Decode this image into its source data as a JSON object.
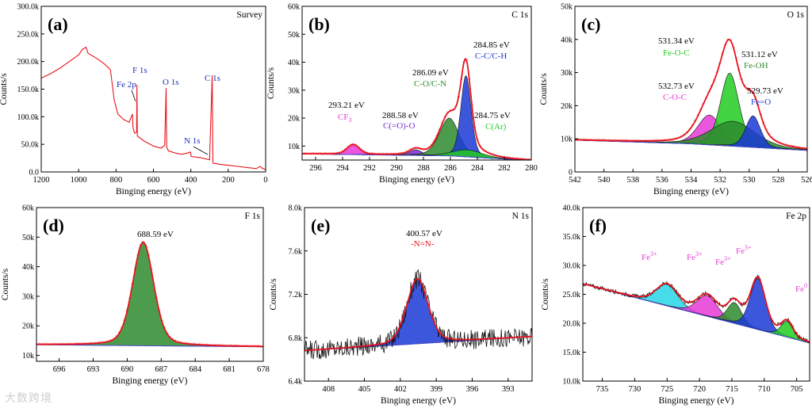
{
  "watermark": "大数跨境",
  "chart_data": [
    {
      "id": "a",
      "type": "line",
      "panel_label": "(a)",
      "title": "Survey",
      "xlabel": "Binging energy (eV)",
      "ylabel": "Counts/s",
      "xlim": [
        1200,
        0
      ],
      "ylim": [
        0,
        300000
      ],
      "xticks": [
        1200,
        1000,
        800,
        600,
        400,
        200,
        0
      ],
      "xtick_labels": [
        "1200",
        "1000",
        "800",
        "600",
        "400",
        "200",
        "0"
      ],
      "yticks": [
        0,
        50000,
        100000,
        150000,
        200000,
        250000,
        300000
      ],
      "ytick_labels": [
        "0.0",
        "50.0k",
        "100.0k",
        "150.0k",
        "200.0k",
        "250.0k",
        "300.0k"
      ],
      "colors": {
        "spectrum": "#e8141e",
        "labels": "#1a2fb8",
        "annotation": "#000000"
      },
      "series": [
        {
          "values": [
            [
              1200,
              170000
            ],
            [
              1150,
              178000
            ],
            [
              1100,
              188000
            ],
            [
              1050,
              200000
            ],
            [
              1000,
              212000
            ],
            [
              980,
              222000
            ],
            [
              960,
              226000
            ],
            [
              950,
              215000
            ],
            [
              900,
              205000
            ],
            [
              860,
              195000
            ],
            [
              830,
              185000
            ],
            [
              810,
              130000
            ],
            [
              790,
              105000
            ],
            [
              760,
              95000
            ],
            [
              730,
              90000
            ],
            [
              712,
              105000
            ],
            [
              710,
              82000
            ],
            [
              705,
              75000
            ],
            [
              700,
              70000
            ],
            [
              690,
              72000
            ],
            [
              688,
              158000
            ],
            [
              686,
              65000
            ],
            [
              650,
              56000
            ],
            [
              600,
              47000
            ],
            [
              560,
              43000
            ],
            [
              540,
              48000
            ],
            [
              532,
              152000
            ],
            [
              529,
              45000
            ],
            [
              520,
              38000
            ],
            [
              480,
              34000
            ],
            [
              450,
              32000
            ],
            [
              420,
              34000
            ],
            [
              402,
              36000
            ],
            [
              398,
              28000
            ],
            [
              350,
              26000
            ],
            [
              300,
              22000
            ],
            [
              286,
              175000
            ],
            [
              282,
              16000
            ],
            [
              250,
              14000
            ],
            [
              200,
              12000
            ],
            [
              150,
              10000
            ],
            [
              100,
              8000
            ],
            [
              50,
              6000
            ],
            [
              30,
              10000
            ],
            [
              20,
              7000
            ],
            [
              0,
              4000
            ]
          ]
        }
      ],
      "annotations": [
        {
          "text": "F 1s",
          "x": 688,
          "y": 175000
        },
        {
          "text": "Fe 2p",
          "x": 725,
          "y": 150000
        },
        {
          "text": "O 1s",
          "x": 532,
          "y": 155000
        },
        {
          "text": "C 1s",
          "x": 286,
          "y": 160000
        },
        {
          "text": "N 1s",
          "x": 398,
          "y": 48000
        }
      ]
    },
    {
      "id": "b",
      "type": "line",
      "panel_label": "(b)",
      "title": "C 1s",
      "xlabel": "Binging energy (eV)",
      "ylabel": "Counts/s",
      "xlim": [
        297,
        280
      ],
      "ylim": [
        5000,
        60000
      ],
      "xticks": [
        296,
        294,
        292,
        290,
        288,
        286,
        284,
        282,
        280
      ],
      "xtick_labels": [
        "296",
        "294",
        "292",
        "290",
        "288",
        "286",
        "284",
        "282",
        "280"
      ],
      "yticks": [
        10000,
        20000,
        30000,
        40000,
        50000,
        60000
      ],
      "ytick_labels": [
        "10k",
        "20k",
        "30k",
        "40k",
        "50k",
        "60k"
      ],
      "background": [
        [
          297,
          7200
        ],
        [
          286,
          6500
        ],
        [
          280,
          4800
        ]
      ],
      "peaks": [
        {
          "center": 293.21,
          "height": 3500,
          "fwhm": 1.1,
          "color": "#e83ad6"
        },
        {
          "center": 288.58,
          "height": 2000,
          "fwhm": 1.1,
          "color": "#7a2ad6"
        },
        {
          "center": 286.09,
          "height": 13500,
          "fwhm": 1.7,
          "color": "#2e8b2e"
        },
        {
          "center": 284.85,
          "height": 29000,
          "fwhm": 0.9,
          "color": "#1a3ad6"
        },
        {
          "center": 284.75,
          "height": 2500,
          "fwhm": 2.6,
          "color": "#22cc22"
        }
      ],
      "envelope_color": "#e8141e",
      "annotations": [
        {
          "text": "284.85 eV",
          "color": "#000000"
        },
        {
          "text": "C-C/C-H",
          "color": "#1a3ad6"
        },
        {
          "text": "286.09 eV",
          "color": "#000000"
        },
        {
          "text": "C-O/C-N",
          "color": "#2e8b2e"
        },
        {
          "text": "284.75 eV",
          "color": "#000000"
        },
        {
          "text": "C(Ar)",
          "color": "#22cc22"
        },
        {
          "text": "293.21 eV",
          "color": "#000000"
        },
        {
          "text": "CF",
          "sub": "3",
          "color": "#e83ad6"
        },
        {
          "text": "288.58 eV",
          "color": "#000000"
        },
        {
          "text": "C(=O)-O",
          "color": "#7a2ad6"
        }
      ]
    },
    {
      "id": "c",
      "type": "line",
      "panel_label": "(c)",
      "title": "O 1s",
      "xlabel": "Binging energy (eV)",
      "ylabel": "Counts/s",
      "xlim": [
        542,
        526
      ],
      "ylim": [
        0,
        50000
      ],
      "xticks": [
        542,
        540,
        538,
        536,
        534,
        532,
        530,
        528,
        526
      ],
      "xtick_labels": [
        "542",
        "540",
        "538",
        "536",
        "534",
        "532",
        "530",
        "528",
        "526"
      ],
      "yticks": [
        0,
        10000,
        20000,
        30000,
        40000,
        50000
      ],
      "ytick_labels": [
        "0",
        "10k",
        "20k",
        "30k",
        "40k",
        "50k"
      ],
      "background": [
        [
          542,
          9600
        ],
        [
          534,
          8500
        ],
        [
          526,
          6500
        ]
      ],
      "peaks": [
        {
          "center": 532.73,
          "height": 9000,
          "fwhm": 1.9,
          "color": "#e83ad6"
        },
        {
          "center": 531.34,
          "height": 22000,
          "fwhm": 1.5,
          "color": "#22cc22"
        },
        {
          "center": 531.12,
          "height": 7500,
          "fwhm": 3.6,
          "color": "#2e8b2e"
        },
        {
          "center": 529.73,
          "height": 9500,
          "fwhm": 1.2,
          "color": "#1a3ad6"
        }
      ],
      "envelope_color": "#e8141e",
      "annotations": [
        {
          "text": "531.34 eV",
          "color": "#000000"
        },
        {
          "text": "Fe-O-C",
          "color": "#22cc22"
        },
        {
          "text": "531.12 eV",
          "color": "#000000"
        },
        {
          "text": "Fe-OH",
          "color": "#2e8b2e"
        },
        {
          "text": "532.73 eV",
          "color": "#000000"
        },
        {
          "text": "C-O-C",
          "color": "#e83ad6"
        },
        {
          "text": "529.73 eV",
          "color": "#000000"
        },
        {
          "text": "Fe=O",
          "color": "#1a3ad6"
        }
      ]
    },
    {
      "id": "d",
      "type": "line",
      "panel_label": "(d)",
      "title": "F 1s",
      "xlabel": "Binging energy (eV)",
      "ylabel": "Counts/s",
      "xlim": [
        698,
        678
      ],
      "ylim": [
        8000,
        60000
      ],
      "xticks": [
        696,
        693,
        690,
        687,
        684,
        681,
        678
      ],
      "xtick_labels": [
        "696",
        "693",
        "690",
        "687",
        "684",
        "681",
        "678"
      ],
      "yticks": [
        10000,
        20000,
        30000,
        40000,
        50000,
        60000
      ],
      "ytick_labels": [
        "10k",
        "20k",
        "30k",
        "40k",
        "50k",
        "60k"
      ],
      "background": [
        [
          698,
          13600
        ],
        [
          678,
          12900
        ]
      ],
      "peaks": [
        {
          "center": 688.59,
          "height": 35000,
          "fwhm": 2.2,
          "color": "#2e8b2e"
        }
      ],
      "envelope_color": "#e8141e",
      "annotations": [
        {
          "text": "688.59 eV",
          "color": "#000000"
        }
      ]
    },
    {
      "id": "e",
      "type": "line",
      "panel_label": "(e)",
      "title": "N 1s",
      "xlabel": "Binging energy (eV)",
      "ylabel": "Counts/s",
      "xlim": [
        410,
        391
      ],
      "ylim": [
        6400,
        8000
      ],
      "xticks": [
        408,
        405,
        402,
        399,
        396,
        393
      ],
      "xtick_labels": [
        "408",
        "405",
        "402",
        "399",
        "396",
        "393"
      ],
      "yticks": [
        6400,
        6800,
        7200,
        7600,
        8000
      ],
      "ytick_labels": [
        "6.4k",
        "6.8k",
        "7.2k",
        "7.6k",
        "8.0k"
      ],
      "background": [
        [
          410,
          6680
        ],
        [
          391,
          6810
        ]
      ],
      "peaks": [
        {
          "center": 400.57,
          "height": 600,
          "fwhm": 2.1,
          "color": "#1a3ad6"
        }
      ],
      "noise": 90,
      "envelope_color": "#e8141e",
      "annotations": [
        {
          "text": "400.57 eV",
          "color": "#000000"
        },
        {
          "text": "-N=N-",
          "color": "#e8141e"
        }
      ]
    },
    {
      "id": "f",
      "type": "line",
      "panel_label": "(f)",
      "title": "Fe 2p",
      "xlabel": "Binging energy (eV)",
      "ylabel": "Counts/s",
      "xlim": [
        738,
        703
      ],
      "ylim": [
        10000,
        40000
      ],
      "xticks": [
        735,
        730,
        725,
        720,
        715,
        710,
        705
      ],
      "xtick_labels": [
        "735",
        "730",
        "725",
        "720",
        "715",
        "710",
        "705"
      ],
      "yticks": [
        10000,
        15000,
        20000,
        25000,
        30000,
        35000,
        40000
      ],
      "ytick_labels": [
        "10.0k",
        "15.0k",
        "20.0k",
        "25.0k",
        "30.0k",
        "35.0k",
        "40.0k"
      ],
      "background": [
        [
          738,
          26800
        ],
        [
          703,
          16600
        ]
      ],
      "peaks": [
        {
          "center": 725.0,
          "height": 3700,
          "fwhm": 4.0,
          "color": "#28d6e6"
        },
        {
          "center": 718.8,
          "height": 3600,
          "fwhm": 3.8,
          "color": "#e83ad6"
        },
        {
          "center": 714.6,
          "height": 3600,
          "fwhm": 2.6,
          "color": "#2e8b2e"
        },
        {
          "center": 711.0,
          "height": 8800,
          "fwhm": 2.8,
          "color": "#1a3ad6"
        },
        {
          "center": 706.5,
          "height": 2700,
          "fwhm": 2.2,
          "color": "#22cc22"
        }
      ],
      "noise": 350,
      "envelope_color": "#e8141e",
      "annotations": [
        {
          "text": "Fe",
          "sup": "3+",
          "color": "#e83ad6"
        },
        {
          "text": "Fe",
          "sup": "3+",
          "color": "#e83ad6"
        },
        {
          "text": "Fe",
          "sup": "3+",
          "color": "#e83ad6"
        },
        {
          "text": "Fe",
          "sup": "3+",
          "color": "#e83ad6"
        },
        {
          "text": "Fe",
          "sup": "0",
          "color": "#e83ad6"
        }
      ]
    }
  ]
}
